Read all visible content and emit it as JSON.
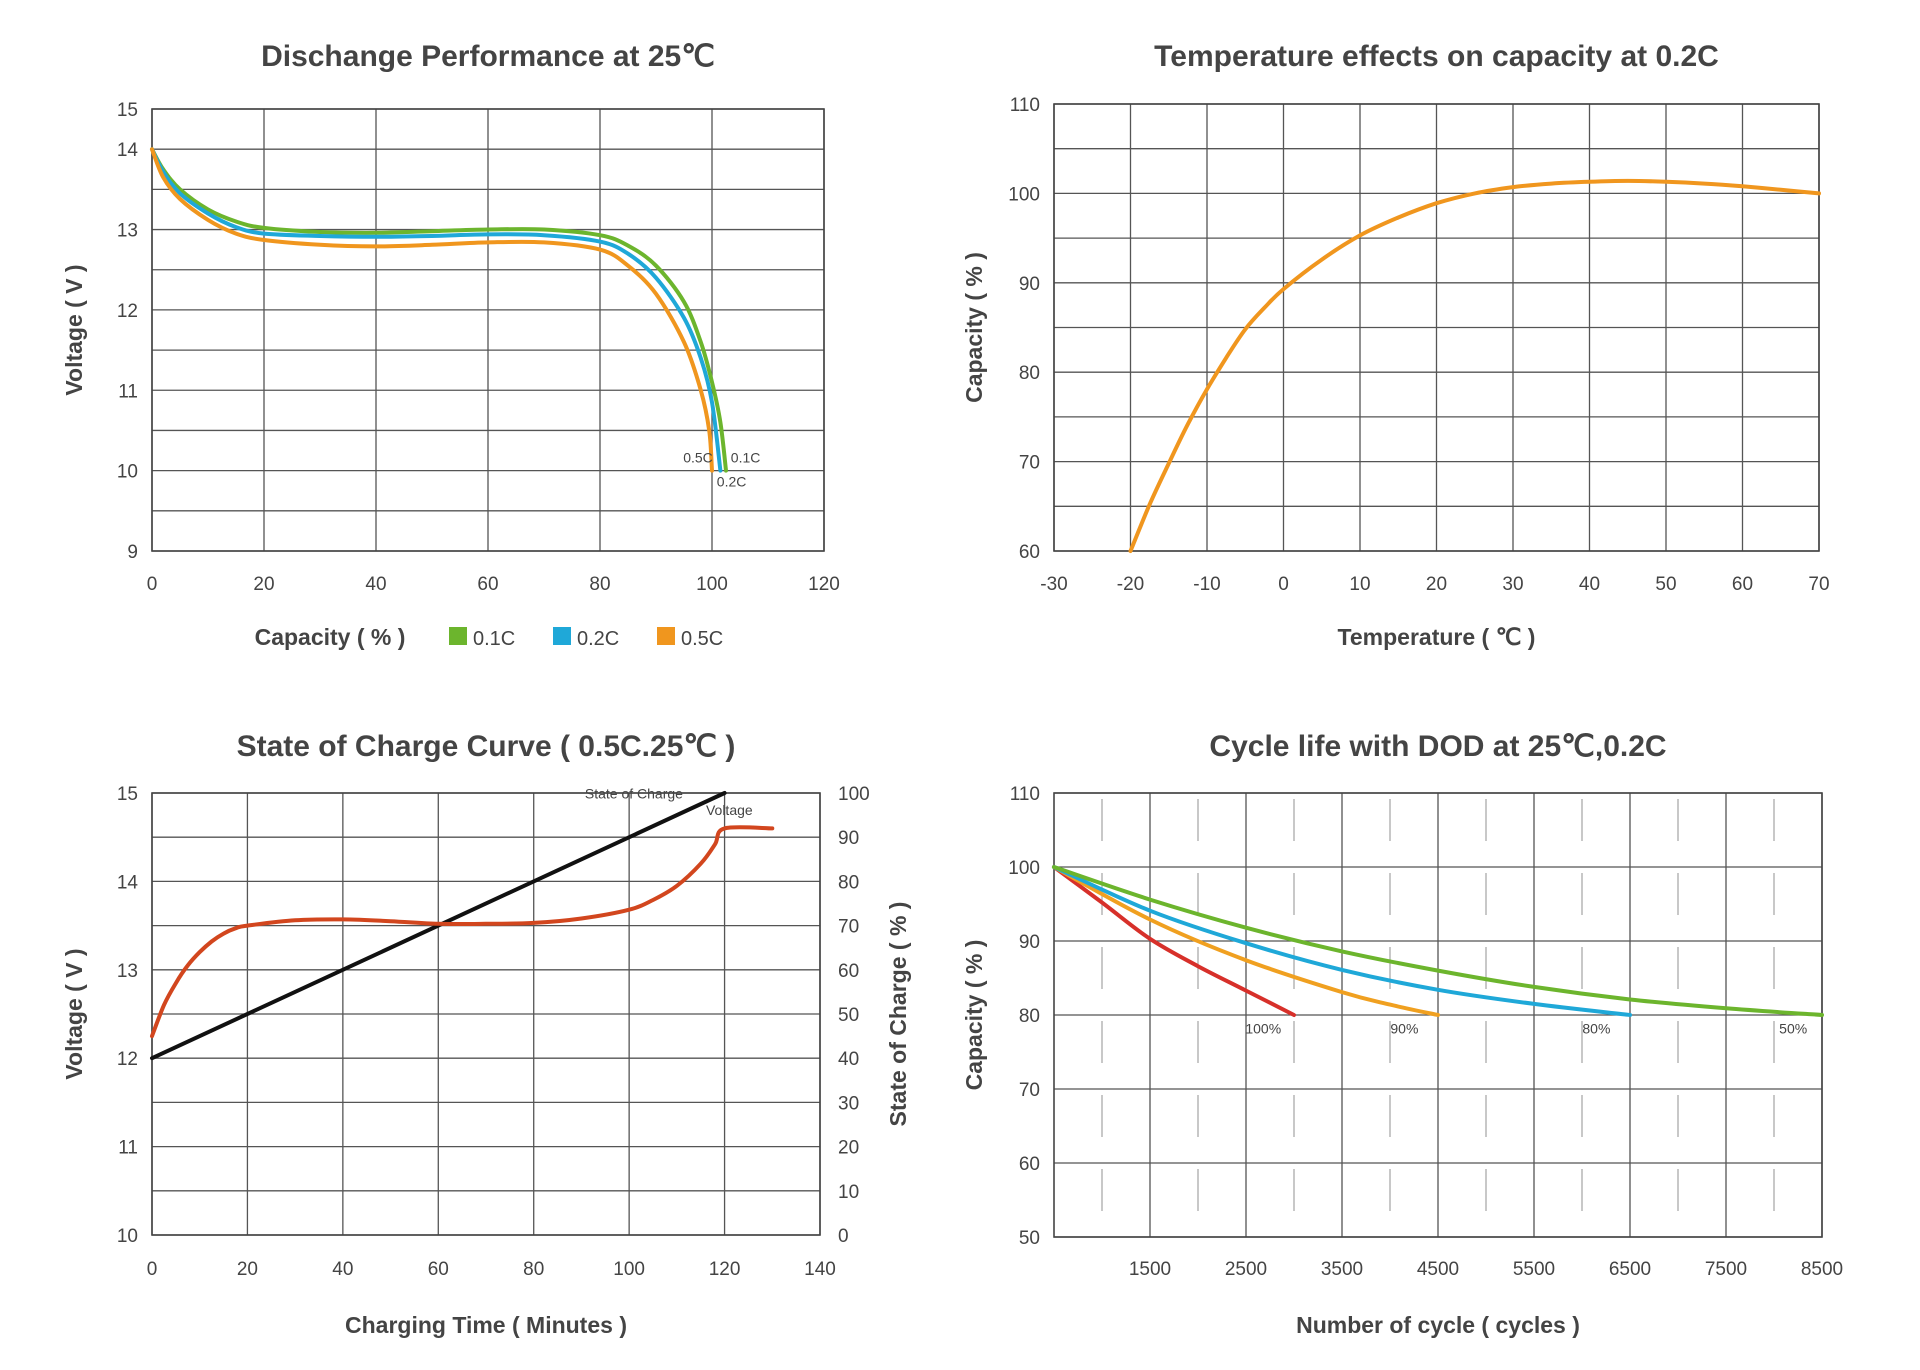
{
  "chart_data": [
    {
      "id": "discharge",
      "type": "line",
      "title": "Dischange Performance at 25℃",
      "xlabel": "Capacity ( % )",
      "ylabel": "Voltage ( V )",
      "xlim": [
        0,
        120
      ],
      "ylim": [
        9,
        14.5
      ],
      "x_ticks": [
        0,
        20,
        40,
        60,
        80,
        100,
        120
      ],
      "x_tick_labels": [
        "0",
        "20",
        "40",
        "60",
        "80",
        "100",
        "120"
      ],
      "y_grid": [
        9,
        9.5,
        10,
        10.5,
        11,
        11.5,
        12,
        12.5,
        13,
        13.5,
        14,
        14.5
      ],
      "y_ticks": [
        14.5,
        14,
        13,
        12,
        11,
        10,
        9
      ],
      "y_tick_labels": [
        "15",
        "14",
        "13",
        "12",
        "11",
        "10",
        "9"
      ],
      "grid": true,
      "legend": {
        "position": "bottom",
        "entries": [
          "0.1C",
          "0.2C",
          "0.5C"
        ]
      },
      "series": [
        {
          "name": "0.1C",
          "color": "#6cb52d",
          "points": [
            [
              0,
              14
            ],
            [
              2,
              13.75
            ],
            [
              5,
              13.5
            ],
            [
              10,
              13.25
            ],
            [
              15,
              13.1
            ],
            [
              20,
              13.02
            ],
            [
              30,
              12.97
            ],
            [
              40,
              12.96
            ],
            [
              50,
              12.98
            ],
            [
              60,
              13.0
            ],
            [
              70,
              13.0
            ],
            [
              80,
              12.93
            ],
            [
              85,
              12.8
            ],
            [
              90,
              12.55
            ],
            [
              95,
              12.1
            ],
            [
              98,
              11.6
            ],
            [
              100,
              11.1
            ],
            [
              101.5,
              10.6
            ],
            [
              102.5,
              10
            ]
          ]
        },
        {
          "name": "0.2C",
          "color": "#1fa8d8",
          "points": [
            [
              0,
              14
            ],
            [
              2,
              13.72
            ],
            [
              5,
              13.45
            ],
            [
              10,
              13.2
            ],
            [
              15,
              13.03
            ],
            [
              20,
              12.95
            ],
            [
              30,
              12.92
            ],
            [
              40,
              12.91
            ],
            [
              50,
              12.92
            ],
            [
              60,
              12.94
            ],
            [
              70,
              12.93
            ],
            [
              80,
              12.85
            ],
            [
              85,
              12.7
            ],
            [
              90,
              12.4
            ],
            [
              95,
              11.9
            ],
            [
              98,
              11.4
            ],
            [
              100,
              10.85
            ],
            [
              101.5,
              10
            ]
          ]
        },
        {
          "name": "0.5C",
          "color": "#f0961e",
          "points": [
            [
              0,
              14
            ],
            [
              2,
              13.65
            ],
            [
              5,
              13.38
            ],
            [
              10,
              13.12
            ],
            [
              15,
              12.95
            ],
            [
              20,
              12.87
            ],
            [
              30,
              12.81
            ],
            [
              40,
              12.79
            ],
            [
              50,
              12.81
            ],
            [
              60,
              12.84
            ],
            [
              70,
              12.84
            ],
            [
              80,
              12.75
            ],
            [
              85,
              12.55
            ],
            [
              90,
              12.2
            ],
            [
              95,
              11.6
            ],
            [
              98,
              11.0
            ],
            [
              99.5,
              10.5
            ],
            [
              100,
              10
            ]
          ]
        }
      ],
      "annotations": [
        {
          "text": "0.5C",
          "x": 97.5,
          "y": 10.1
        },
        {
          "text": "0.1C",
          "x": 106,
          "y": 10.1
        },
        {
          "text": "0.2C",
          "x": 103.5,
          "y": 9.8
        }
      ]
    },
    {
      "id": "temperature",
      "type": "line",
      "title": "Temperature effects on capacity at 0.2C",
      "xlabel": "Temperature ( ℃ )",
      "ylabel": "Capacity ( % )",
      "xlim": [
        -30,
        70
      ],
      "ylim": [
        60,
        110
      ],
      "x_ticks": [
        -30,
        -20,
        -10,
        0,
        10,
        20,
        30,
        40,
        50,
        60,
        70
      ],
      "x_tick_labels": [
        "-30",
        "-20",
        "-10",
        "0",
        "10",
        "20",
        "30",
        "40",
        "50",
        "60",
        "70"
      ],
      "y_grid": [
        60,
        65,
        70,
        75,
        80,
        85,
        90,
        95,
        100,
        105,
        110
      ],
      "y_ticks": [
        60,
        70,
        80,
        90,
        100,
        110
      ],
      "y_tick_labels": [
        "60",
        "70",
        "80",
        "90",
        "100",
        "110"
      ],
      "grid": true,
      "series": [
        {
          "name": "Capacity",
          "color": "#f0961e",
          "points": [
            [
              -20,
              60
            ],
            [
              -17.5,
              65.2
            ],
            [
              -15,
              69.8
            ],
            [
              -12.5,
              74.2
            ],
            [
              -10,
              78.1
            ],
            [
              -7.5,
              81.6
            ],
            [
              -5,
              84.8
            ],
            [
              -2.5,
              87.2
            ],
            [
              0,
              89.3
            ],
            [
              5,
              92.6
            ],
            [
              10,
              95.3
            ],
            [
              15,
              97.3
            ],
            [
              20,
              98.9
            ],
            [
              25,
              100.0
            ],
            [
              30,
              100.7
            ],
            [
              35,
              101.1
            ],
            [
              40,
              101.3
            ],
            [
              45,
              101.4
            ],
            [
              50,
              101.3
            ],
            [
              55,
              101.1
            ],
            [
              60,
              100.8
            ],
            [
              65,
              100.4
            ],
            [
              70,
              100
            ]
          ]
        }
      ]
    },
    {
      "id": "soc",
      "type": "line",
      "title": "State of Charge Curve ( 0.5C.25℃ )",
      "xlabel": "Charging Time ( Minutes )",
      "ylabel": "Voltage ( V )",
      "y2label": "State of Charge ( % )",
      "xlim": [
        0,
        140
      ],
      "ylim": [
        10,
        15
      ],
      "y2lim": [
        0,
        100
      ],
      "x_ticks": [
        0,
        20,
        40,
        60,
        80,
        100,
        120,
        140
      ],
      "x_tick_labels": [
        "0",
        "20",
        "40",
        "60",
        "80",
        "100",
        "120",
        "140"
      ],
      "y_grid": [
        10,
        10.5,
        11,
        11.5,
        12,
        12.5,
        13,
        13.5,
        14,
        14.5,
        15
      ],
      "y_ticks": [
        10,
        11,
        12,
        13,
        14,
        15
      ],
      "y_tick_labels": [
        "10",
        "11",
        "12",
        "13",
        "14",
        "15"
      ],
      "y2_ticks": [
        0,
        10,
        20,
        30,
        40,
        50,
        60,
        70,
        80,
        90,
        100
      ],
      "y2_tick_labels": [
        "0",
        "10",
        "20",
        "30",
        "40",
        "50",
        "60",
        "70",
        "80",
        "90",
        "100"
      ],
      "grid": true,
      "series": [
        {
          "name": "State of Charge",
          "axis": "y2",
          "color": "#111111",
          "points": [
            [
              0,
              40
            ],
            [
              120,
              100
            ]
          ]
        },
        {
          "name": "Voltage",
          "axis": "y",
          "color": "#d2461e",
          "points": [
            [
              0,
              12.25
            ],
            [
              2.5,
              12.6
            ],
            [
              5,
              12.85
            ],
            [
              7.5,
              13.05
            ],
            [
              10,
              13.2
            ],
            [
              12.5,
              13.32
            ],
            [
              15,
              13.41
            ],
            [
              17.5,
              13.47
            ],
            [
              20,
              13.5
            ],
            [
              30,
              13.56
            ],
            [
              40,
              13.57
            ],
            [
              50,
              13.55
            ],
            [
              60,
              13.52
            ],
            [
              70,
              13.52
            ],
            [
              80,
              13.53
            ],
            [
              90,
              13.58
            ],
            [
              100,
              13.68
            ],
            [
              105,
              13.79
            ],
            [
              110,
              13.95
            ],
            [
              115,
              14.2
            ],
            [
              118,
              14.42
            ],
            [
              120,
              14.6
            ],
            [
              130,
              14.6
            ]
          ]
        }
      ],
      "annotations": [
        {
          "text": "State of Charge",
          "x": 101,
          "y": 14.94
        },
        {
          "text": "Voltage",
          "x": 121,
          "y": 14.75
        }
      ]
    },
    {
      "id": "cycle",
      "type": "line",
      "title": "Cycle life with DOD at 25℃,0.2C",
      "xlabel": "Number of cycle ( cycles )",
      "ylabel": "Capacity ( % )",
      "xlim": [
        500,
        8500
      ],
      "ylim": [
        50,
        110
      ],
      "x_ticks": [
        1500,
        2500,
        3500,
        4500,
        5500,
        6500,
        7500,
        8500
      ],
      "x_tick_labels": [
        "1500",
        "2500",
        "3500",
        "4500",
        "5500",
        "6500",
        "7500",
        "8500"
      ],
      "x_minor_ticks": [
        1000,
        2000,
        3000,
        4000,
        5000,
        6000,
        7000,
        8000
      ],
      "y_ticks": [
        50,
        60,
        70,
        80,
        90,
        100,
        110
      ],
      "y_tick_labels": [
        "50",
        "60",
        "70",
        "80",
        "90",
        "100",
        "110"
      ],
      "grid": true,
      "series": [
        {
          "name": "100%",
          "color": "#d7302a",
          "points": [
            [
              500,
              100
            ],
            [
              1000,
              95.2
            ],
            [
              1500,
              90.3
            ],
            [
              2000,
              86.6
            ],
            [
              2500,
              83.3
            ],
            [
              3000,
              80
            ]
          ]
        },
        {
          "name": "90%",
          "color": "#f0a020",
          "points": [
            [
              500,
              100
            ],
            [
              1500,
              92.9
            ],
            [
              2500,
              87.4
            ],
            [
              3500,
              83.1
            ],
            [
              4000,
              81.4
            ],
            [
              4500,
              80
            ]
          ]
        },
        {
          "name": "80%",
          "color": "#1fa8d8",
          "points": [
            [
              500,
              100
            ],
            [
              1500,
              94.1
            ],
            [
              2500,
              89.7
            ],
            [
              3500,
              86.1
            ],
            [
              4500,
              83.4
            ],
            [
              5500,
              81.5
            ],
            [
              6500,
              80
            ]
          ]
        },
        {
          "name": "50%",
          "color": "#6cb52d",
          "points": [
            [
              500,
              100
            ],
            [
              1500,
              95.6
            ],
            [
              2500,
              91.8
            ],
            [
              3500,
              88.6
            ],
            [
              4500,
              86.0
            ],
            [
              5500,
              83.8
            ],
            [
              6500,
              82.1
            ],
            [
              7500,
              80.9
            ],
            [
              8500,
              80
            ]
          ]
        }
      ],
      "annotations": [
        {
          "text": "100%",
          "x": 2680,
          "y": 77.5
        },
        {
          "text": "90%",
          "x": 4150,
          "y": 77.5
        },
        {
          "text": "80%",
          "x": 6150,
          "y": 77.5
        },
        {
          "text": "50%",
          "x": 8200,
          "y": 77.5
        }
      ]
    }
  ]
}
